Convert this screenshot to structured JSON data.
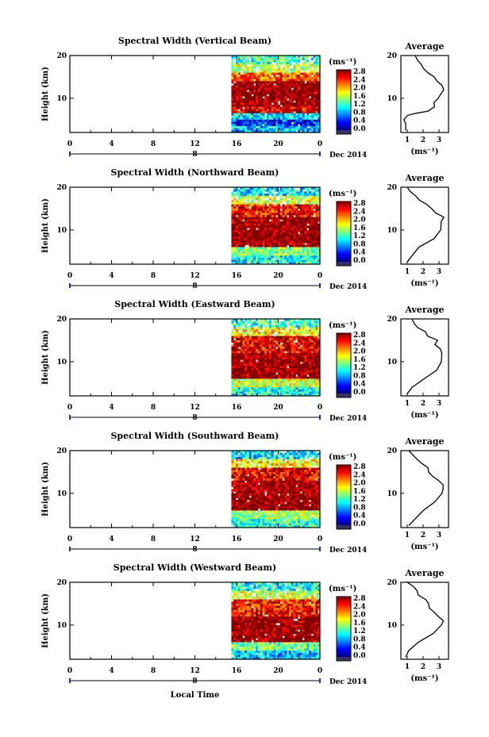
{
  "figure": {
    "xlabel": "Local Time",
    "average_title": "Average",
    "units_label": "(ms⁻¹)",
    "date_label": "Dec 2014",
    "day_label": "8"
  },
  "chart_data": [
    {
      "type": "heatmap",
      "title": "Spectral Width (Vertical Beam)",
      "xlabel": "",
      "ylabel": "Height (km)",
      "xlim": [
        0,
        24
      ],
      "ylim": [
        2,
        20
      ],
      "xticks": [
        "0",
        "4",
        "8",
        "12",
        "16",
        "20",
        "0"
      ],
      "yticks": [
        "10",
        "20"
      ],
      "data_start_hour": 15.5,
      "colorbar": {
        "label": "(ms⁻¹)",
        "ticks": [
          "0.0",
          "0.4",
          "0.8",
          "1.2",
          "1.6",
          "2.0",
          "2.4",
          "2.8"
        ],
        "range": [
          0,
          2.8
        ]
      },
      "profile_rows": [
        {
          "height_range": [
            2,
            3.5
          ],
          "value": 0.9
        },
        {
          "height_range": [
            3.5,
            5
          ],
          "value": 0.5
        },
        {
          "height_range": [
            5,
            6.5
          ],
          "value": 1.0
        },
        {
          "height_range": [
            6.5,
            8
          ],
          "value": 2.5
        },
        {
          "height_range": [
            8,
            14
          ],
          "value": 2.8
        },
        {
          "height_range": [
            14,
            16
          ],
          "value": 2.2
        },
        {
          "height_range": [
            16,
            18
          ],
          "value": 1.6
        },
        {
          "height_range": [
            18,
            20
          ],
          "value": 1.2
        }
      ],
      "average": {
        "xlabel": "(ms⁻¹)",
        "xlim": [
          0.6,
          3.6
        ],
        "xticks": [
          "1",
          "2",
          "3"
        ],
        "yticks": [
          "10",
          "20"
        ],
        "height": [
          2.5,
          4,
          5,
          6,
          6.5,
          7,
          8,
          9,
          10,
          11,
          12,
          13,
          14,
          15,
          16,
          17,
          18,
          19,
          20
        ],
        "value": [
          0.9,
          0.9,
          0.9,
          1.0,
          1.6,
          2.4,
          2.6,
          2.8,
          3.0,
          3.1,
          3.3,
          3.2,
          3.0,
          2.7,
          2.3,
          2.0,
          1.9,
          1.6,
          1.5
        ]
      }
    },
    {
      "type": "heatmap",
      "title": "Spectral Width (Northward Beam)",
      "xlabel": "",
      "ylabel": "Height (km)",
      "xlim": [
        0,
        24
      ],
      "ylim": [
        2,
        20
      ],
      "xticks": [
        "0",
        "4",
        "8",
        "12",
        "16",
        "20",
        "0"
      ],
      "yticks": [
        "10",
        "20"
      ],
      "data_start_hour": 15.5,
      "colorbar": {
        "label": "(ms⁻¹)",
        "ticks": [
          "0.0",
          "0.4",
          "0.8",
          "1.2",
          "1.6",
          "2.0",
          "2.4",
          "2.8"
        ],
        "range": [
          0,
          2.8
        ]
      },
      "profile_rows": [
        {
          "height_range": [
            2,
            4
          ],
          "value": 1.1
        },
        {
          "height_range": [
            4,
            6
          ],
          "value": 1.4
        },
        {
          "height_range": [
            6,
            13
          ],
          "value": 2.8
        },
        {
          "height_range": [
            13,
            16
          ],
          "value": 2.4
        },
        {
          "height_range": [
            16,
            18
          ],
          "value": 1.6
        },
        {
          "height_range": [
            18,
            20
          ],
          "value": 1.0
        }
      ],
      "average": {
        "xlabel": "(ms⁻¹)",
        "xlim": [
          0.6,
          3.6
        ],
        "xticks": [
          "1",
          "2",
          "3"
        ],
        "yticks": [
          "10",
          "20"
        ],
        "height": [
          2.5,
          4,
          6,
          8,
          10,
          12,
          13,
          14,
          15,
          16,
          17,
          18,
          19,
          20
        ],
        "value": [
          1.0,
          1.3,
          1.8,
          2.7,
          3.2,
          3.1,
          3.3,
          2.8,
          2.5,
          2.3,
          1.8,
          1.6,
          1.2,
          1.0
        ]
      }
    },
    {
      "type": "heatmap",
      "title": "Spectral Width (Eastward Beam)",
      "xlabel": "",
      "ylabel": "Height (km)",
      "xlim": [
        0,
        24
      ],
      "ylim": [
        2,
        20
      ],
      "xticks": [
        "0",
        "4",
        "8",
        "12",
        "16",
        "20",
        "0"
      ],
      "yticks": [
        "10",
        "20"
      ],
      "data_start_hour": 15.5,
      "colorbar": {
        "label": "(ms⁻¹)",
        "ticks": [
          "0.0",
          "0.4",
          "0.8",
          "1.2",
          "1.6",
          "2.0",
          "2.4",
          "2.8"
        ],
        "range": [
          0,
          2.8
        ]
      },
      "profile_rows": [
        {
          "height_range": [
            2,
            4
          ],
          "value": 1.1
        },
        {
          "height_range": [
            4,
            6
          ],
          "value": 1.6
        },
        {
          "height_range": [
            6,
            12
          ],
          "value": 2.8
        },
        {
          "height_range": [
            12,
            16
          ],
          "value": 2.5
        },
        {
          "height_range": [
            16,
            18
          ],
          "value": 1.8
        },
        {
          "height_range": [
            18,
            20
          ],
          "value": 1.2
        }
      ],
      "average": {
        "xlabel": "(ms⁻¹)",
        "xlim": [
          0.6,
          3.6
        ],
        "xticks": [
          "1",
          "2",
          "3"
        ],
        "yticks": [
          "10",
          "20"
        ],
        "height": [
          2.5,
          4,
          6,
          8,
          10,
          12,
          13,
          14,
          15,
          16,
          17,
          18,
          19,
          20
        ],
        "value": [
          1.0,
          1.4,
          2.0,
          2.8,
          3.2,
          3.1,
          3.2,
          2.7,
          2.9,
          2.4,
          2.2,
          1.7,
          1.4,
          1.3
        ]
      }
    },
    {
      "type": "heatmap",
      "title": "Spectral Width (Southward Beam)",
      "xlabel": "",
      "ylabel": "Height (km)",
      "xlim": [
        0,
        24
      ],
      "ylim": [
        2,
        20
      ],
      "xticks": [
        "0",
        "4",
        "8",
        "12",
        "16",
        "20",
        "0"
      ],
      "yticks": [
        "10",
        "20"
      ],
      "data_start_hour": 15.5,
      "colorbar": {
        "label": "(ms⁻¹)",
        "ticks": [
          "0.0",
          "0.4",
          "0.8",
          "1.2",
          "1.6",
          "2.0",
          "2.4",
          "2.8"
        ],
        "range": [
          0,
          2.8
        ]
      },
      "profile_rows": [
        {
          "height_range": [
            2,
            4
          ],
          "value": 1.2
        },
        {
          "height_range": [
            4,
            6
          ],
          "value": 1.5
        },
        {
          "height_range": [
            6,
            13
          ],
          "value": 2.8
        },
        {
          "height_range": [
            13,
            16
          ],
          "value": 2.5
        },
        {
          "height_range": [
            16,
            18
          ],
          "value": 1.8
        },
        {
          "height_range": [
            18,
            20
          ],
          "value": 1.0
        }
      ],
      "average": {
        "xlabel": "(ms⁻¹)",
        "xlim": [
          0.6,
          3.6
        ],
        "xticks": [
          "1",
          "2",
          "3"
        ],
        "yticks": [
          "10",
          "20"
        ],
        "height": [
          2.5,
          4,
          6,
          8,
          10,
          11,
          12,
          13,
          14,
          15,
          16,
          17,
          18,
          19,
          20
        ],
        "value": [
          1.1,
          1.4,
          1.9,
          2.8,
          3.3,
          3.2,
          3.3,
          2.9,
          2.6,
          2.4,
          2.2,
          1.9,
          1.7,
          1.3,
          1.1
        ]
      }
    },
    {
      "type": "heatmap",
      "title": "Spectral Width (Westward Beam)",
      "xlabel": "Local Time",
      "ylabel": "Height (km)",
      "xlim": [
        0,
        24
      ],
      "ylim": [
        2,
        20
      ],
      "xticks": [
        "0",
        "4",
        "8",
        "12",
        "16",
        "20",
        "0"
      ],
      "yticks": [
        "10",
        "20"
      ],
      "data_start_hour": 15.5,
      "colorbar": {
        "label": "(ms⁻¹)",
        "ticks": [
          "0.0",
          "0.4",
          "0.8",
          "1.2",
          "1.6",
          "2.0",
          "2.4",
          "2.8"
        ],
        "range": [
          0,
          2.8
        ]
      },
      "profile_rows": [
        {
          "height_range": [
            2,
            4
          ],
          "value": 0.9
        },
        {
          "height_range": [
            4,
            6
          ],
          "value": 1.3
        },
        {
          "height_range": [
            6,
            12
          ],
          "value": 2.8
        },
        {
          "height_range": [
            12,
            16
          ],
          "value": 2.4
        },
        {
          "height_range": [
            16,
            18
          ],
          "value": 1.6
        },
        {
          "height_range": [
            18,
            20
          ],
          "value": 1.1
        }
      ],
      "average": {
        "xlabel": "(ms⁻¹)",
        "xlim": [
          0.6,
          3.6
        ],
        "xticks": [
          "1",
          "2",
          "3"
        ],
        "yticks": [
          "10",
          "20"
        ],
        "height": [
          2.5,
          4,
          6,
          8,
          10,
          11,
          12,
          13,
          14,
          15,
          16,
          17,
          18,
          19,
          20
        ],
        "value": [
          0.9,
          1.2,
          1.8,
          2.7,
          3.2,
          3.3,
          3.0,
          2.8,
          2.5,
          2.3,
          2.1,
          1.8,
          1.6,
          1.3,
          1.0
        ]
      }
    }
  ]
}
